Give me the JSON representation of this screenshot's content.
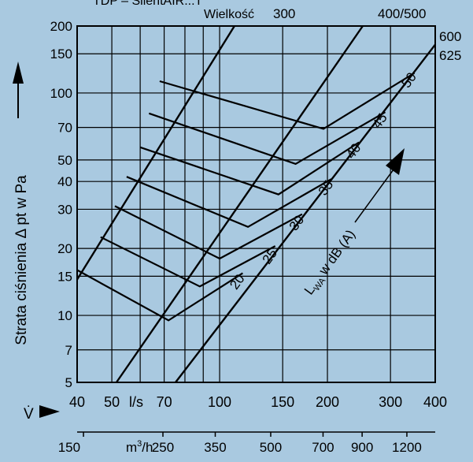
{
  "header": {
    "partial_title": "TDP – SilentAIR...T"
  },
  "chart_data": {
    "type": "line",
    "title": "",
    "xlabel": "V̇",
    "xlabel_unit_primary": "l/s",
    "xlabel_unit_secondary": "m³/h",
    "ylabel": "Strata ciśnienia Δ pt w Pa",
    "xscale": "log",
    "yscale": "log",
    "xlim": [
      40,
      400
    ],
    "ylim": [
      5,
      200
    ],
    "grid": true,
    "x_ticks_ls": [
      {
        "value": 40,
        "label": "40"
      },
      {
        "value": 50,
        "label": "50"
      },
      {
        "value": 70,
        "label": "70"
      },
      {
        "value": 100,
        "label": "100"
      },
      {
        "value": 150,
        "label": "150"
      },
      {
        "value": 200,
        "label": "200"
      },
      {
        "value": 300,
        "label": "300"
      },
      {
        "value": 400,
        "label": "400"
      }
    ],
    "x_gridlines_ls": [
      40,
      50,
      60,
      70,
      80,
      90,
      100,
      150,
      200,
      300,
      400
    ],
    "x_ticks_m3h": [
      {
        "value": 150,
        "label": "150"
      },
      {
        "value": 250,
        "label": "250"
      },
      {
        "value": 350,
        "label": "350"
      },
      {
        "value": 500,
        "label": "500"
      },
      {
        "value": 700,
        "label": "700"
      },
      {
        "value": 900,
        "label": "900"
      },
      {
        "value": 1200,
        "label": "1200"
      }
    ],
    "y_ticks": [
      {
        "value": 5,
        "label": "5"
      },
      {
        "value": 7,
        "label": "7"
      },
      {
        "value": 10,
        "label": "10"
      },
      {
        "value": 15,
        "label": "15"
      },
      {
        "value": 20,
        "label": "20"
      },
      {
        "value": 30,
        "label": "30"
      },
      {
        "value": 40,
        "label": "40"
      },
      {
        "value": 50,
        "label": "50"
      },
      {
        "value": 70,
        "label": "70"
      },
      {
        "value": 100,
        "label": "100"
      },
      {
        "value": 150,
        "label": "150"
      },
      {
        "value": 200,
        "label": "200"
      }
    ],
    "size_series_title": "Wielkość",
    "size_series": [
      {
        "name": "300",
        "points": [
          [
            40,
            14.5
          ],
          [
            110,
            200
          ]
        ]
      },
      {
        "name": "400/500",
        "points": [
          [
            51.5,
            5
          ],
          [
            251,
            200
          ]
        ]
      },
      {
        "name": "600",
        "label2": "625",
        "points": [
          [
            75.3,
            5
          ],
          [
            400,
            165
          ]
        ]
      }
    ],
    "lwa_label": "LWA w dB (A)",
    "lwa_series": [
      {
        "name": "20",
        "points": [
          [
            40,
            16
          ],
          [
            72,
            9.5
          ],
          [
            116,
            15.5
          ]
        ]
      },
      {
        "name": "25",
        "points": [
          [
            46.5,
            22.5
          ],
          [
            88,
            13.5
          ],
          [
            143,
            20.5
          ]
        ]
      },
      {
        "name": "30",
        "points": [
          [
            51,
            31
          ],
          [
            100,
            18
          ],
          [
            170,
            28.5
          ]
        ]
      },
      {
        "name": "35",
        "points": [
          [
            55,
            42
          ],
          [
            120,
            25
          ],
          [
            205,
            41
          ]
        ]
      },
      {
        "name": "40",
        "points": [
          [
            60,
            57
          ],
          [
            146,
            35
          ],
          [
            245,
            60
          ]
        ]
      },
      {
        "name": "45",
        "points": [
          [
            63.5,
            81
          ],
          [
            163,
            48
          ],
          [
            290,
            82
          ]
        ]
      },
      {
        "name": "50",
        "points": [
          [
            68,
            113
          ],
          [
            195,
            69
          ],
          [
            350,
            123
          ]
        ]
      }
    ]
  }
}
